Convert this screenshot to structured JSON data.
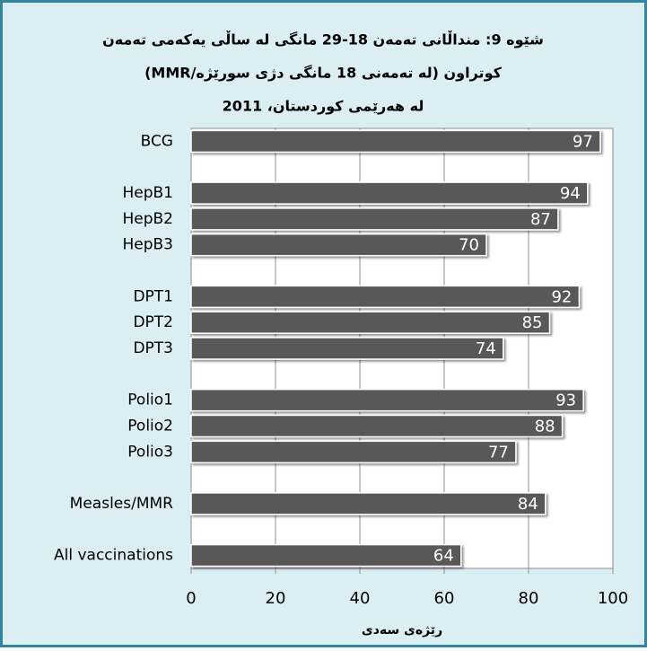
{
  "chart_data": {
    "type": "hbar",
    "title": [
      "شێوە 9: منداڵانی تەمەن 18-29 مانگی لە ساڵی یەکەمی تەمەن",
      "کوتراون (لە تەمەنی 18 مانگی دژی سورێژە/MMR)",
      "لە هەرێمی کوردستان، 2011"
    ],
    "xlabel": "رێژەی سەدی",
    "categories": [
      "BCG",
      null,
      "HepB1",
      "HepB2",
      "HepB3",
      null,
      "DPT1",
      "DPT2",
      "DPT3",
      null,
      "Polio1",
      "Polio2",
      "Polio3",
      null,
      "Measles/MMR",
      null,
      "All vaccinations"
    ],
    "values": [
      97,
      null,
      94,
      87,
      70,
      null,
      92,
      85,
      74,
      null,
      93,
      88,
      77,
      null,
      84,
      null,
      64
    ],
    "color": "#595959",
    "xlim": [
      0,
      100
    ],
    "xticks": [
      0,
      20,
      40,
      60,
      80,
      100
    ],
    "grid": true
  }
}
